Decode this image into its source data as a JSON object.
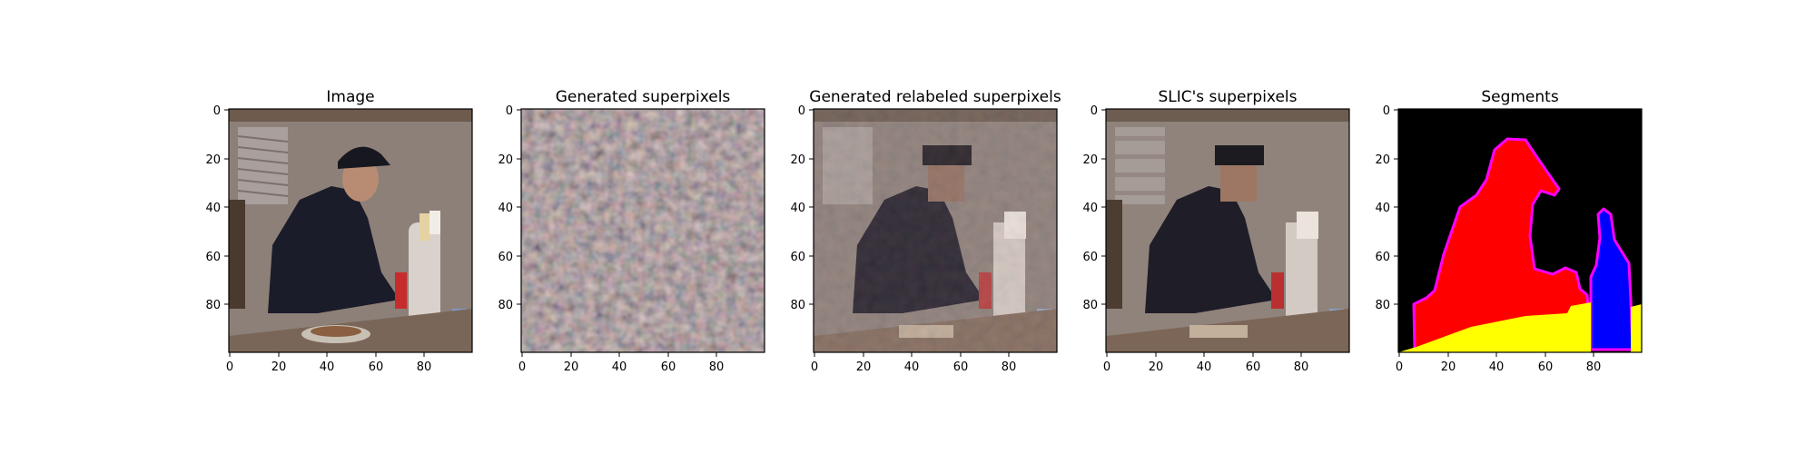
{
  "figure": {
    "panels": [
      {
        "id": "image",
        "title": "Image",
        "x_ticks": [
          "0",
          "20",
          "40",
          "60",
          "80"
        ],
        "y_ticks": [
          "0",
          "20",
          "40",
          "60",
          "80"
        ],
        "content": "photo of a man in a cap and dark shirt eating at a table with a bottle"
      },
      {
        "id": "generated-superpixels",
        "title": "Generated superpixels",
        "x_ticks": [
          "0",
          "20",
          "40",
          "60",
          "80"
        ],
        "y_ticks": [
          "0",
          "20",
          "40",
          "60",
          "80"
        ],
        "content": "scrambled superpixel mosaic"
      },
      {
        "id": "generated-relabeled-superpixels",
        "title": "Generated relabeled superpixels",
        "x_ticks": [
          "0",
          "20",
          "40",
          "60",
          "80"
        ],
        "y_ticks": [
          "0",
          "20",
          "40",
          "60",
          "80"
        ],
        "content": "blocky reconstruction of the photo"
      },
      {
        "id": "slic-superpixels",
        "title": "SLIC's superpixels",
        "x_ticks": [
          "0",
          "20",
          "40",
          "60",
          "80"
        ],
        "y_ticks": [
          "0",
          "20",
          "40",
          "60",
          "80"
        ],
        "content": "SLIC superpixel averaged photo"
      },
      {
        "id": "segments",
        "title": "Segments",
        "x_ticks": [
          "0",
          "20",
          "40",
          "60",
          "80"
        ],
        "y_ticks": [
          "0",
          "20",
          "40",
          "60",
          "80"
        ],
        "content": "segmentation map: black background, red person, blue bottle, yellow table, magenta boundaries"
      }
    ],
    "colors": {
      "segment_background": "#000000",
      "segment_person": "#ff0000",
      "segment_bottle": "#0000ff",
      "segment_table": "#ffff00",
      "segment_boundary": "#ff00ff"
    }
  }
}
